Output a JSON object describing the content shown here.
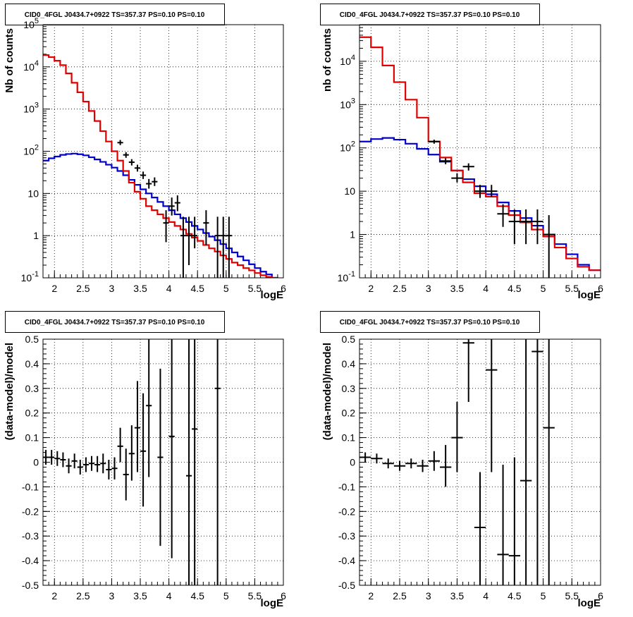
{
  "colors": {
    "data": "#000000",
    "model_total": "#e00000",
    "model_background": "#0000cc",
    "grid": "#000000"
  },
  "chart_data": [
    {
      "type": "line",
      "subtype": "step-histogram-with-errorbars",
      "title": "CID0_4FGL J0434.7+0922 TS=357.37 PS=0.10 PS=0.10",
      "xlabel": "logE",
      "ylabel": "Nb of counts",
      "xlim": [
        1.8,
        6
      ],
      "ylim": [
        0.1,
        100000
      ],
      "yscale": "log",
      "grid": true,
      "xticks": [
        "2",
        "2.5",
        "3",
        "3.5",
        "4",
        "4.5",
        "5",
        "5.5",
        "6"
      ],
      "yticks": [
        "10^-1",
        "1",
        "10",
        "10^2",
        "10^3",
        "10^4",
        "10^5"
      ],
      "bin_edges": [
        1.8,
        1.9,
        2.0,
        2.1,
        2.2,
        2.3,
        2.4,
        2.5,
        2.6,
        2.7,
        2.8,
        2.9,
        3.0,
        3.1,
        3.2,
        3.3,
        3.4,
        3.5,
        3.6,
        3.7,
        3.8,
        3.9,
        4.0,
        4.1,
        4.2,
        4.3,
        4.4,
        4.5,
        4.6,
        4.7,
        4.8,
        4.9,
        5.0,
        5.1,
        5.2,
        5.3,
        5.4,
        5.5,
        5.6,
        5.7,
        5.8,
        5.9,
        6.0
      ],
      "series": [
        {
          "role": "model_total",
          "values": [
            19000,
            17000,
            14000,
            11000,
            7000,
            4200,
            2500,
            1500,
            900,
            520,
            300,
            170,
            100,
            60,
            34,
            18,
            11,
            7.5,
            5,
            4,
            3.2,
            2.6,
            2.1,
            1.7,
            1.4,
            1.1,
            0.9,
            0.75,
            0.6,
            0.5,
            0.42,
            0.34,
            0.28,
            0.23,
            0.2,
            0.17,
            0.15,
            0.13,
            0.115,
            0.105,
            0.1,
            0.095
          ]
        },
        {
          "role": "model_background",
          "values": [
            60,
            68,
            75,
            82,
            86,
            88,
            85,
            80,
            72,
            64,
            56,
            48,
            41,
            34,
            27,
            21,
            16,
            12.5,
            10,
            8,
            6.3,
            5,
            4,
            3.2,
            2.6,
            2.1,
            1.7,
            1.4,
            1.15,
            0.95,
            0.78,
            0.63,
            0.5,
            0.4,
            0.32,
            0.26,
            0.21,
            0.17,
            0.14,
            0.12,
            0.1,
            0.09
          ]
        },
        {
          "role": "data",
          "points": [
            {
              "x": 3.15,
              "y": 160,
              "lo": 140,
              "hi": 185
            },
            {
              "x": 3.25,
              "y": 82,
              "lo": 70,
              "hi": 95
            },
            {
              "x": 3.35,
              "y": 55,
              "lo": 46,
              "hi": 65
            },
            {
              "x": 3.45,
              "y": 40,
              "lo": 33,
              "hi": 48
            },
            {
              "x": 3.55,
              "y": 27,
              "lo": 22,
              "hi": 33
            },
            {
              "x": 3.65,
              "y": 17,
              "lo": 13,
              "hi": 22
            },
            {
              "x": 3.75,
              "y": 19,
              "lo": 15,
              "hi": 24
            },
            {
              "x": 3.95,
              "y": 2,
              "lo": 0.7,
              "hi": 4
            },
            {
              "x": 4.05,
              "y": 5,
              "lo": 3,
              "hi": 8
            },
            {
              "x": 4.15,
              "y": 6,
              "lo": 3.8,
              "hi": 9
            },
            {
              "x": 4.25,
              "y": 1,
              "lo": 0.1,
              "hi": 2.8
            },
            {
              "x": 4.35,
              "y": 1,
              "lo": 0.2,
              "hi": 2.8
            },
            {
              "x": 4.45,
              "y": 1,
              "lo": 0.5,
              "hi": 2.8
            },
            {
              "x": 4.65,
              "y": 2,
              "lo": 0.6,
              "hi": 4
            },
            {
              "x": 4.85,
              "y": 1,
              "lo": 0.1,
              "hi": 2.8
            },
            {
              "x": 4.95,
              "y": 1,
              "lo": 0.1,
              "hi": 2.8
            },
            {
              "x": 5.05,
              "y": 1,
              "lo": 0.1,
              "hi": 2.8
            }
          ]
        }
      ]
    },
    {
      "type": "line",
      "subtype": "step-histogram-with-errorbars",
      "title": "CID0_4FGL J0434.7+0922 TS=357.37 PS=0.10 PS=0.10",
      "xlabel": "logE",
      "ylabel": "nb of counts",
      "xlim": [
        1.8,
        6
      ],
      "ylim": [
        0.1,
        70000
      ],
      "yscale": "log",
      "grid": true,
      "xticks": [
        "2",
        "2.5",
        "3",
        "3.5",
        "4",
        "4.5",
        "5",
        "5.5",
        "6"
      ],
      "yticks": [
        "10^-1",
        "1",
        "10",
        "10^2",
        "10^3",
        "10^4"
      ],
      "bin_edges": [
        1.8,
        2.0,
        2.2,
        2.4,
        2.6,
        2.8,
        3.0,
        3.2,
        3.4,
        3.6,
        3.8,
        4.0,
        4.2,
        4.4,
        4.6,
        4.8,
        5.0,
        5.2,
        5.4,
        5.6,
        5.8,
        6.0
      ],
      "series": [
        {
          "role": "model_total",
          "values": [
            36000,
            21000,
            8000,
            3300,
            1300,
            500,
            140,
            60,
            30,
            16,
            9,
            7.5,
            4.5,
            2.8,
            1.9,
            1.3,
            0.9,
            0.5,
            0.28,
            0.18,
            0.15
          ]
        },
        {
          "role": "model_background",
          "values": [
            140,
            160,
            170,
            155,
            125,
            95,
            70,
            48,
            30,
            19,
            13,
            8.5,
            5.5,
            3.5,
            2.4,
            1.6,
            1.0,
            0.6,
            0.35,
            0.2,
            0.15
          ]
        },
        {
          "role": "data",
          "points": [
            {
              "x": 3.1,
              "y": 140,
              "lo": 125,
              "hi": 155
            },
            {
              "x": 3.3,
              "y": 50,
              "lo": 42,
              "hi": 58
            },
            {
              "x": 3.5,
              "y": 20,
              "lo": 16,
              "hi": 26
            },
            {
              "x": 3.7,
              "y": 37,
              "lo": 30,
              "hi": 44
            },
            {
              "x": 3.9,
              "y": 10,
              "lo": 7,
              "hi": 14
            },
            {
              "x": 4.1,
              "y": 10,
              "lo": 7.5,
              "hi": 14
            },
            {
              "x": 4.3,
              "y": 3,
              "lo": 1.5,
              "hi": 5
            },
            {
              "x": 4.5,
              "y": 2,
              "lo": 0.6,
              "hi": 3.8
            },
            {
              "x": 4.7,
              "y": 2,
              "lo": 0.6,
              "hi": 3.8
            },
            {
              "x": 4.9,
              "y": 2,
              "lo": 0.6,
              "hi": 3.8
            },
            {
              "x": 5.1,
              "y": 1,
              "lo": 0.1,
              "hi": 2.8
            }
          ]
        }
      ]
    },
    {
      "type": "scatter",
      "subtype": "errorbars",
      "title": "CID0_4FGL J0434.7+0922 TS=357.37 PS=0.10 PS=0.10",
      "xlabel": "logE",
      "ylabel": "(data-model)/model",
      "xlim": [
        1.8,
        6
      ],
      "ylim": [
        -0.5,
        0.5
      ],
      "grid": true,
      "xticks": [
        "2",
        "2.5",
        "3",
        "3.5",
        "4",
        "4.5",
        "5",
        "5.5",
        "6"
      ],
      "yticks": [
        "-0.5",
        "-0.4",
        "-0.3",
        "-0.2",
        "-0.1",
        "0",
        "0.1",
        "0.2",
        "0.3",
        "0.4",
        "0.5"
      ],
      "bin_width": 0.1,
      "points": [
        {
          "x": 1.85,
          "y": 0.02,
          "lo": -0.01,
          "hi": 0.05
        },
        {
          "x": 1.95,
          "y": 0.02,
          "lo": -0.01,
          "hi": 0.05
        },
        {
          "x": 2.05,
          "y": 0.015,
          "lo": -0.015,
          "hi": 0.045
        },
        {
          "x": 2.15,
          "y": 0.01,
          "lo": -0.02,
          "hi": 0.04
        },
        {
          "x": 2.25,
          "y": -0.015,
          "lo": -0.045,
          "hi": 0.015
        },
        {
          "x": 2.35,
          "y": 0.005,
          "lo": -0.025,
          "hi": 0.035
        },
        {
          "x": 2.45,
          "y": -0.02,
          "lo": -0.05,
          "hi": 0.01
        },
        {
          "x": 2.55,
          "y": -0.01,
          "lo": -0.04,
          "hi": 0.02
        },
        {
          "x": 2.65,
          "y": -0.005,
          "lo": -0.035,
          "hi": 0.025
        },
        {
          "x": 2.75,
          "y": -0.01,
          "lo": -0.04,
          "hi": 0.025
        },
        {
          "x": 2.85,
          "y": -0.005,
          "lo": -0.045,
          "hi": 0.035
        },
        {
          "x": 2.95,
          "y": -0.03,
          "lo": -0.07,
          "hi": 0.01
        },
        {
          "x": 3.05,
          "y": -0.025,
          "lo": -0.07,
          "hi": 0.02
        },
        {
          "x": 3.15,
          "y": 0.065,
          "lo": 0.0,
          "hi": 0.14
        },
        {
          "x": 3.25,
          "y": -0.05,
          "lo": -0.155,
          "hi": 0.055
        },
        {
          "x": 3.35,
          "y": 0.035,
          "lo": -0.075,
          "hi": 0.15
        },
        {
          "x": 3.45,
          "y": 0.14,
          "lo": -0.04,
          "hi": 0.33
        },
        {
          "x": 3.55,
          "y": 0.045,
          "lo": -0.18,
          "hi": 0.28
        },
        {
          "x": 3.65,
          "y": 0.23,
          "lo": -0.06,
          "hi": 0.5
        },
        {
          "x": 3.85,
          "y": 0.02,
          "lo": -0.34,
          "hi": 0.38
        },
        {
          "x": 4.05,
          "y": 0.105,
          "lo": -0.39,
          "hi": 0.5
        },
        {
          "x": 4.35,
          "y": -0.055,
          "lo": -0.5,
          "hi": 0.5
        },
        {
          "x": 4.45,
          "y": 0.135,
          "lo": -0.5,
          "hi": 0.5
        },
        {
          "x": 4.85,
          "y": 0.3,
          "lo": -0.5,
          "hi": 0.5
        }
      ]
    },
    {
      "type": "scatter",
      "subtype": "errorbars",
      "title": "CID0_4FGL J0434.7+0922 TS=357.37 PS=0.10 PS=0.10",
      "xlabel": "logE",
      "ylabel": "(data-model)/model",
      "xlim": [
        1.8,
        6
      ],
      "ylim": [
        -0.5,
        0.5
      ],
      "grid": true,
      "xticks": [
        "2",
        "2.5",
        "3",
        "3.5",
        "4",
        "4.5",
        "5",
        "5.5",
        "6"
      ],
      "yticks": [
        "-0.5",
        "-0.4",
        "-0.3",
        "-0.2",
        "-0.1",
        "0",
        "0.1",
        "0.2",
        "0.3",
        "0.4",
        "0.5"
      ],
      "bin_width": 0.2,
      "points": [
        {
          "x": 1.9,
          "y": 0.02,
          "lo": 0.0,
          "hi": 0.04
        },
        {
          "x": 2.1,
          "y": 0.015,
          "lo": -0.005,
          "hi": 0.035
        },
        {
          "x": 2.3,
          "y": -0.005,
          "lo": -0.025,
          "hi": 0.015
        },
        {
          "x": 2.5,
          "y": -0.015,
          "lo": -0.035,
          "hi": 0.005
        },
        {
          "x": 2.7,
          "y": -0.005,
          "lo": -0.025,
          "hi": 0.015
        },
        {
          "x": 2.9,
          "y": -0.015,
          "lo": -0.04,
          "hi": 0.01
        },
        {
          "x": 3.1,
          "y": 0.005,
          "lo": -0.035,
          "hi": 0.045
        },
        {
          "x": 3.3,
          "y": -0.02,
          "lo": -0.1,
          "hi": 0.07
        },
        {
          "x": 3.5,
          "y": 0.1,
          "lo": -0.04,
          "hi": 0.245
        },
        {
          "x": 3.7,
          "y": 0.485,
          "lo": 0.245,
          "hi": 0.5
        },
        {
          "x": 3.9,
          "y": -0.265,
          "lo": -0.5,
          "hi": -0.04
        },
        {
          "x": 4.1,
          "y": 0.375,
          "lo": -0.04,
          "hi": 0.5
        },
        {
          "x": 4.3,
          "y": -0.375,
          "lo": -0.5,
          "hi": -0.01
        },
        {
          "x": 4.5,
          "y": -0.38,
          "lo": -0.5,
          "hi": 0.02
        },
        {
          "x": 4.7,
          "y": -0.075,
          "lo": -0.5,
          "hi": 0.5
        },
        {
          "x": 4.9,
          "y": 0.45,
          "lo": -0.5,
          "hi": 0.5
        },
        {
          "x": 5.1,
          "y": 0.14,
          "lo": -0.5,
          "hi": 0.5
        }
      ]
    }
  ]
}
